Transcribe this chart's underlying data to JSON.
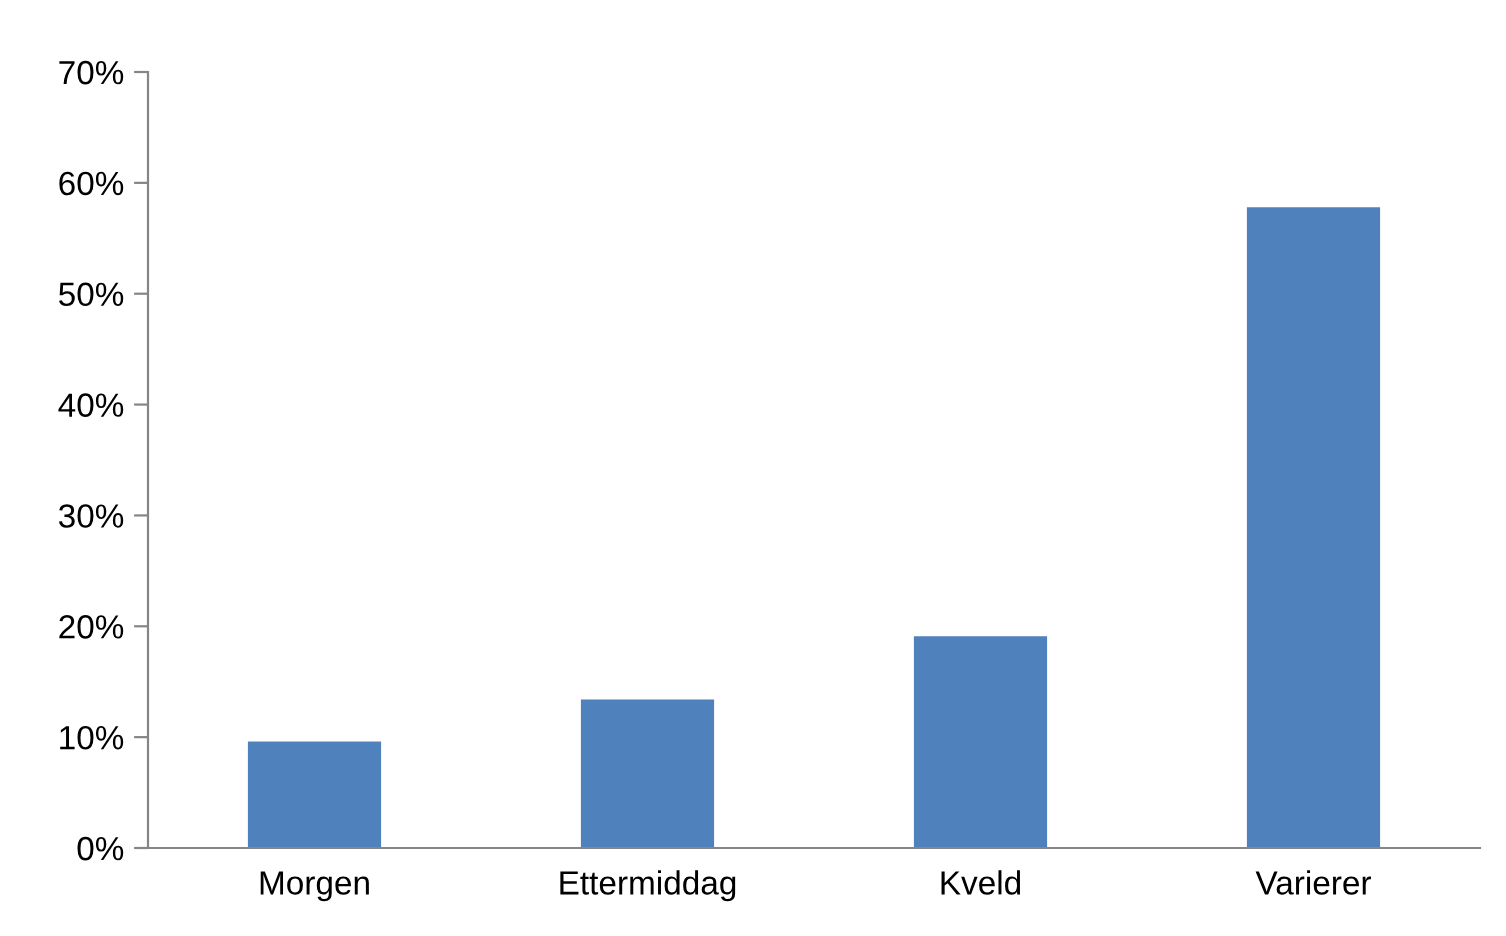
{
  "chart_data": {
    "type": "bar",
    "categories": [
      "Morgen",
      "Ettermiddag",
      "Kveld",
      "Varierer"
    ],
    "values": [
      0.096,
      0.134,
      0.191,
      0.578
    ],
    "color": "#4f81bd",
    "ylim": [
      0,
      0.7
    ],
    "yticks": [
      {
        "value": 0,
        "label": "0%"
      },
      {
        "value": 0.1,
        "label": "10%"
      },
      {
        "value": 0.2,
        "label": "20%"
      },
      {
        "value": 0.3,
        "label": "30%"
      },
      {
        "value": 0.4,
        "label": "40%"
      },
      {
        "value": 0.5,
        "label": "50%"
      },
      {
        "value": 0.6,
        "label": "60%"
      },
      {
        "value": 0.7,
        "label": "70%"
      }
    ],
    "grid": false,
    "legend": false
  }
}
